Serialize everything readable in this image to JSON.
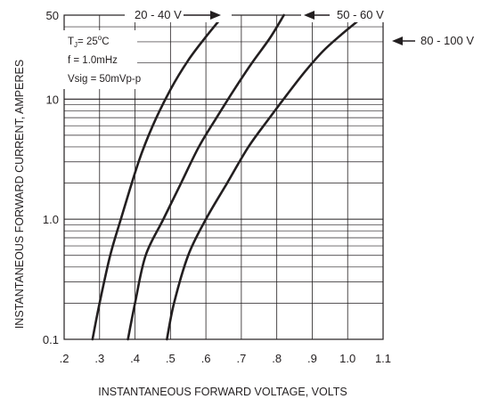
{
  "chart_data": {
    "type": "line",
    "title": "",
    "xlabel": "INSTANTANEOUS FORWARD VOLTAGE, VOLTS",
    "ylabel": "INSTANTANEOUS FORWARD CURRENT, AMPERES",
    "xlim": [
      0.2,
      1.1
    ],
    "ylim": [
      0.1,
      50
    ],
    "yscale": "log",
    "grid": true,
    "x_ticks": [
      ".2",
      ".3",
      ".4",
      ".5",
      ".6",
      ".7",
      ".8",
      ".9",
      "1.0",
      "1.1"
    ],
    "y_ticks": [
      "0.1",
      "1.0",
      "10",
      "50"
    ],
    "conditions": {
      "tj_main": "T",
      "tj_sub": "J",
      "tj_val": "= 25",
      "tj_sup": "o",
      "tj_unit": "C",
      "freq": "f = 1.0mHz",
      "vsig": "Vsig = 50mVp-p"
    },
    "series": [
      {
        "name": "20 - 40 V",
        "points": [
          [
            0.28,
            0.1
          ],
          [
            0.3,
            0.2
          ],
          [
            0.33,
            0.5
          ],
          [
            0.36,
            1.0
          ],
          [
            0.41,
            3.0
          ],
          [
            0.45,
            6.0
          ],
          [
            0.5,
            12.0
          ],
          [
            0.55,
            21.0
          ],
          [
            0.6,
            33.0
          ],
          [
            0.65,
            50.0
          ]
        ]
      },
      {
        "name": "50 - 60 V",
        "points": [
          [
            0.38,
            0.1
          ],
          [
            0.4,
            0.2
          ],
          [
            0.43,
            0.5
          ],
          [
            0.48,
            1.0
          ],
          [
            0.53,
            2.0
          ],
          [
            0.58,
            4.0
          ],
          [
            0.63,
            7.0
          ],
          [
            0.68,
            12.0
          ],
          [
            0.73,
            20.0
          ],
          [
            0.78,
            32.0
          ],
          [
            0.82,
            50.0
          ]
        ]
      },
      {
        "name": "80 - 100 V",
        "points": [
          [
            0.49,
            0.1
          ],
          [
            0.51,
            0.2
          ],
          [
            0.55,
            0.5
          ],
          [
            0.6,
            1.0
          ],
          [
            0.66,
            2.0
          ],
          [
            0.72,
            4.0
          ],
          [
            0.78,
            7.0
          ],
          [
            0.83,
            11.0
          ],
          [
            0.88,
            17.0
          ],
          [
            0.93,
            25.0
          ],
          [
            0.98,
            34.0
          ],
          [
            1.03,
            45.0
          ]
        ]
      }
    ],
    "colors": {
      "ink": "#231f20",
      "background": "#ffffff"
    }
  }
}
